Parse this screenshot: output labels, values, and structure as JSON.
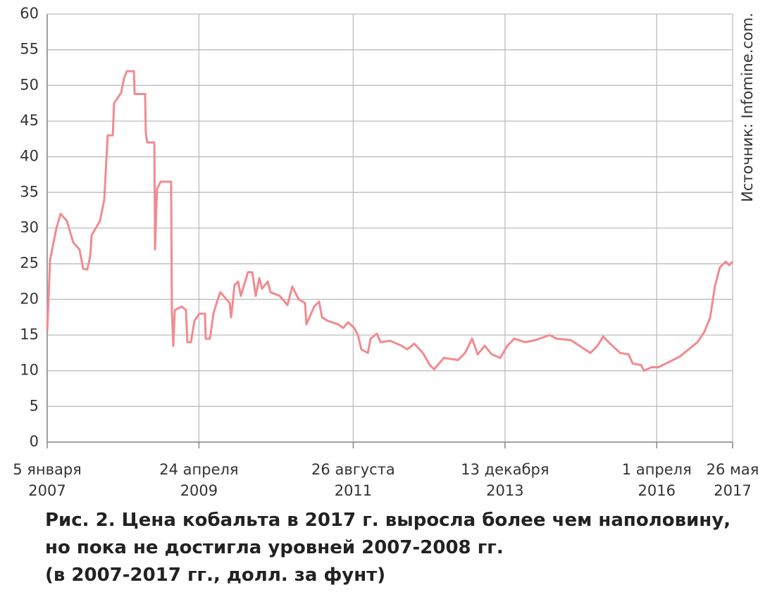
{
  "chart_data": {
    "type": "line",
    "title": [
      "Рис. 2. Цена кобальта в 2017 г. выросла более чем наполовину,",
      "но пока не достигла уровней 2007-2008 гг.",
      "(в 2007-2017 гг., долл. за фунт)"
    ],
    "source": "Источник: Infomine.com.",
    "color": "#f28a8f",
    "grid": true,
    "ylim": [
      0,
      60
    ],
    "yticks": [
      0,
      5,
      10,
      15,
      20,
      25,
      30,
      35,
      40,
      45,
      50,
      55,
      60
    ],
    "xlim": [
      "2007-01-05",
      "2017-05-26"
    ],
    "xticks": [
      {
        "value": "2007-01-05",
        "label": "5 января\n2007"
      },
      {
        "value": "2009-04-24",
        "label": "24 апреля\n2009"
      },
      {
        "value": "2011-08-26",
        "label": "26 августа\n2011"
      },
      {
        "value": "2013-12-13",
        "label": "13 декабря\n2013"
      },
      {
        "value": "2016-04-01",
        "label": "1 апреля\n2016"
      },
      {
        "value": "2017-05-26",
        "label": "26 мая\n2017"
      }
    ],
    "x": [
      "2007-01-05",
      "2007-01-21",
      "2007-02-09",
      "2007-02-25",
      "2007-03-20",
      "2007-04-24",
      "2007-05-29",
      "2007-07-03",
      "2007-07-23",
      "2007-08-15",
      "2007-08-31",
      "2007-09-08",
      "2007-10-24",
      "2007-11-17",
      "2007-12-06",
      "2008-01-03",
      "2008-01-10",
      "2008-02-19",
      "2008-03-05",
      "2008-03-21",
      "2008-04-29",
      "2008-05-03",
      "2008-06-30",
      "2008-07-04",
      "2008-07-12",
      "2008-08-20",
      "2008-08-24",
      "2008-09-04",
      "2008-09-24",
      "2008-11-21",
      "2008-11-25",
      "2008-12-03",
      "2008-12-11",
      "2009-01-19",
      "2009-02-11",
      "2009-02-19",
      "2009-03-11",
      "2009-03-30",
      "2009-04-26",
      "2009-05-28",
      "2009-05-31",
      "2009-06-24",
      "2009-07-13",
      "2009-08-06",
      "2009-08-21",
      "2009-10-11",
      "2009-10-19",
      "2009-11-07",
      "2009-11-27",
      "2009-12-12",
      "2010-01-20",
      "2010-02-13",
      "2010-03-04",
      "2010-03-24",
      "2010-04-08",
      "2010-05-10",
      "2010-05-25",
      "2010-07-15",
      "2010-08-27",
      "2010-09-23",
      "2010-10-28",
      "2010-12-02",
      "2010-12-10",
      "2011-01-22",
      "2011-02-18",
      "2011-03-06",
      "2011-04-06",
      "2011-06-04",
      "2011-07-01",
      "2011-07-28",
      "2011-09-01",
      "2011-09-21",
      "2011-10-10",
      "2011-11-15",
      "2011-11-30",
      "2012-01-04",
      "2012-01-24",
      "2012-03-18",
      "2012-05-20",
      "2012-06-20",
      "2012-07-29",
      "2012-09-14",
      "2012-10-23",
      "2012-11-15",
      "2013-01-09",
      "2013-03-28",
      "2013-05-06",
      "2013-06-14",
      "2013-07-15",
      "2013-08-23",
      "2013-10-01",
      "2013-11-17",
      "2013-12-26",
      "2014-02-03",
      "2014-04-02",
      "2014-05-31",
      "2014-08-17",
      "2014-09-25",
      "2014-12-12",
      "2015-02-28",
      "2015-03-31",
      "2015-05-09",
      "2015-06-09",
      "2015-07-18",
      "2015-09-11",
      "2015-10-28",
      "2015-11-20",
      "2016-01-06",
      "2016-01-21",
      "2016-03-04",
      "2016-04-12",
      "2016-05-21",
      "2016-06-29",
      "2016-08-07",
      "2016-09-15",
      "2016-11-13",
      "2016-12-22",
      "2017-01-22",
      "2017-02-18",
      "2017-03-17",
      "2017-04-18",
      "2017-05-07",
      "2017-05-26"
    ],
    "values": [
      15.5,
      25.5,
      28,
      30,
      32,
      31,
      28,
      27,
      24.3,
      24.2,
      26,
      29,
      31,
      34,
      43,
      43,
      47.5,
      49,
      51,
      52,
      52,
      48.8,
      48.8,
      43.3,
      42,
      42,
      27,
      35.5,
      36.5,
      36.5,
      18.3,
      13.5,
      18.5,
      19,
      18.5,
      14,
      14,
      17,
      18,
      18,
      14.5,
      14.5,
      18,
      20,
      21,
      19.5,
      17.5,
      22,
      22.5,
      20.5,
      23.8,
      23.8,
      20.5,
      23,
      21.5,
      22.5,
      21,
      20.5,
      19.2,
      21.8,
      20,
      19.5,
      16.5,
      19,
      19.7,
      17.5,
      17,
      16.5,
      16,
      16.8,
      16,
      15,
      13,
      12.5,
      14.5,
      15.2,
      14,
      14.2,
      13.5,
      13,
      13.8,
      12.5,
      10.8,
      10.2,
      11.8,
      11.5,
      12.5,
      14.5,
      12.3,
      13.5,
      12.3,
      11.8,
      13.5,
      14.5,
      14,
      14.3,
      15,
      14.5,
      14.3,
      13,
      12.5,
      13.5,
      14.8,
      13.8,
      12.5,
      12.3,
      11,
      10.8,
      10,
      10.5,
      10.5,
      11,
      11.5,
      12,
      12.8,
      14,
      15.5,
      17.5,
      22,
      24.5,
      25.3,
      24.8,
      25.3
    ]
  }
}
